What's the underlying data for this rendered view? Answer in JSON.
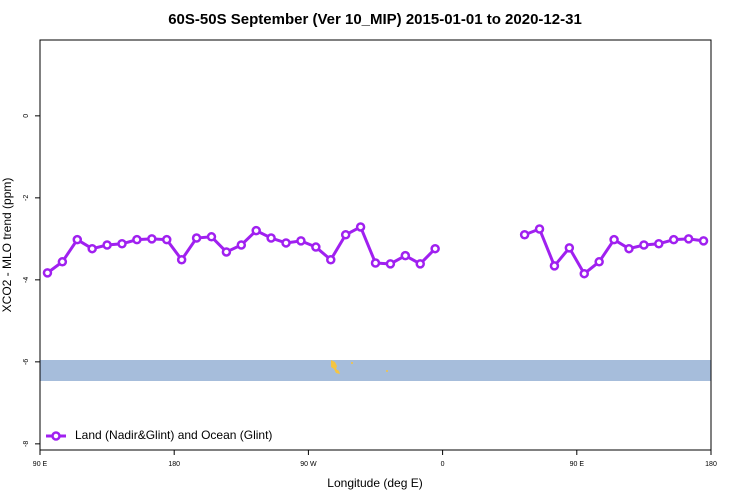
{
  "chart_data": {
    "type": "line",
    "title": "60S-50S September (Ver 10_MIP)   2015-01-01 to 2020-12-31",
    "x_label": "Longitude (deg E)",
    "y_label": "XCO2 - MLO trend (ppm)",
    "x": [
      95,
      105,
      115,
      125,
      135,
      145,
      155,
      165,
      175,
      185,
      195,
      205,
      215,
      225,
      235,
      245,
      255,
      265,
      275,
      285,
      295,
      305,
      315,
      325,
      335,
      345,
      355,
      365,
      375,
      385,
      395,
      405,
      415,
      425,
      435,
      445,
      455,
      465,
      475,
      485,
      495,
      505,
      515,
      525,
      535
    ],
    "series": [
      {
        "name": "Land (Nadir&Glint) and Ocean (Glint)",
        "color": "#a020f0",
        "values": [
          -3.83,
          -3.56,
          -3.02,
          -3.24,
          -3.15,
          -3.12,
          -3.02,
          -3.0,
          -3.02,
          -3.51,
          -2.98,
          -2.95,
          -3.32,
          -3.15,
          -2.8,
          -2.98,
          -3.1,
          -3.05,
          -3.2,
          -3.51,
          -2.9,
          -2.71,
          -3.59,
          -3.61,
          -3.41,
          -3.61,
          -3.24,
          null,
          null,
          null,
          null,
          null,
          -2.9,
          -2.76,
          -3.66,
          -3.22,
          -3.85,
          -3.56,
          -3.02,
          -3.24,
          -3.15,
          -3.12,
          -3.02,
          -3.0,
          -3.05
        ]
      }
    ],
    "xlim": [
      90,
      540
    ],
    "ylim": [
      -8.15,
      1.85
    ],
    "xticks": [
      {
        "value": 90,
        "label": "90 E"
      },
      180,
      {
        "value": 270,
        "label": "90 W"
      },
      {
        "value": 360,
        "label": "0"
      },
      {
        "value": 450,
        "label": "90 E"
      },
      {
        "value": 540,
        "label": "180"
      }
    ],
    "yticks": [
      0,
      -2,
      -4,
      -6,
      -8
    ],
    "legend": "bottom-left"
  }
}
